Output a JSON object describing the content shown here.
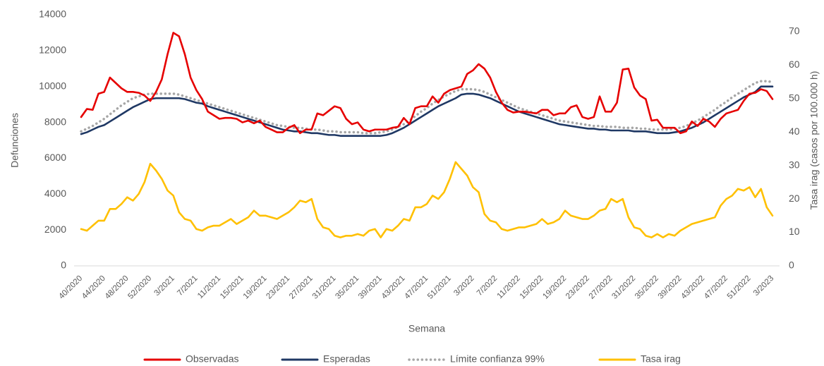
{
  "chart_data": {
    "type": "line",
    "x_label": "Semana",
    "y_label": "Defunciones",
    "y2_label": "Tasa irag (casos por 100.000 h)",
    "categories": [
      "40/2020",
      null,
      null,
      null,
      "44/2020",
      null,
      null,
      null,
      "48/2020",
      null,
      null,
      null,
      "52/2020",
      null,
      null,
      null,
      "3/2021",
      null,
      null,
      null,
      "7/2021",
      null,
      null,
      null,
      "11/2021",
      null,
      null,
      null,
      "15/2021",
      null,
      null,
      null,
      "19/2021",
      null,
      null,
      null,
      "23/2021",
      null,
      null,
      null,
      "27/2021",
      null,
      null,
      null,
      "31/2021",
      null,
      null,
      null,
      "35/2021",
      null,
      null,
      null,
      "39/2021",
      null,
      null,
      null,
      "43/2021",
      null,
      null,
      null,
      "47/2021",
      null,
      null,
      null,
      "51/2021",
      null,
      null,
      null,
      "3/2022",
      null,
      null,
      null,
      "7/2022",
      null,
      null,
      null,
      "11/2022",
      null,
      null,
      null,
      "15/2022",
      null,
      null,
      null,
      "19/2022",
      null,
      null,
      null,
      "23/2022",
      null,
      null,
      null,
      "27/2022",
      null,
      null,
      null,
      "31/2022",
      null,
      null,
      null,
      "35/2022",
      null,
      null,
      null,
      "39/2022",
      null,
      null,
      null,
      "43/2022",
      null,
      null,
      null,
      "47/2022",
      null,
      null,
      null,
      "51/2022",
      null,
      null,
      null,
      "3/2023"
    ],
    "series": [
      {
        "name": "Observadas",
        "color": "#e60000",
        "style": "solid",
        "values": [
          8300,
          8750,
          8700,
          9600,
          9700,
          10500,
          10200,
          9900,
          9700,
          9700,
          9650,
          9500,
          9200,
          9700,
          10400,
          11800,
          13000,
          12800,
          11800,
          10500,
          9800,
          9300,
          8600,
          8400,
          8200,
          8250,
          8250,
          8200,
          8000,
          8100,
          7950,
          8100,
          7750,
          7600,
          7450,
          7450,
          7700,
          7850,
          7400,
          7600,
          7600,
          8500,
          8400,
          8650,
          8900,
          8800,
          8200,
          7900,
          8000,
          7600,
          7500,
          7600,
          7600,
          7600,
          7700,
          7750,
          8250,
          7900,
          8800,
          8900,
          8900,
          9450,
          9100,
          9600,
          9800,
          9900,
          10000,
          10700,
          10900,
          11250,
          11000,
          10500,
          9700,
          9100,
          8700,
          8550,
          8600,
          8600,
          8550,
          8500,
          8700,
          8700,
          8400,
          8500,
          8500,
          8850,
          8950,
          8300,
          8200,
          8300,
          9450,
          8600,
          8600,
          9100,
          10950,
          11000,
          9950,
          9500,
          9300,
          8100,
          8150,
          7700,
          7700,
          7700,
          7400,
          7500,
          8050,
          7800,
          8200,
          8050,
          7750,
          8200,
          8500,
          8600,
          8700,
          9200,
          9600,
          9650,
          9850,
          9750,
          9300
        ]
      },
      {
        "name": "Esperadas",
        "color": "#1f3864",
        "style": "solid",
        "values": [
          7350,
          7450,
          7600,
          7750,
          7850,
          8050,
          8250,
          8450,
          8650,
          8850,
          9000,
          9150,
          9300,
          9350,
          9350,
          9350,
          9350,
          9350,
          9300,
          9200,
          9100,
          9050,
          8900,
          8800,
          8700,
          8600,
          8500,
          8400,
          8300,
          8200,
          8100,
          8000,
          7900,
          7800,
          7700,
          7600,
          7550,
          7500,
          7500,
          7450,
          7400,
          7400,
          7350,
          7300,
          7300,
          7250,
          7250,
          7250,
          7250,
          7250,
          7250,
          7250,
          7250,
          7300,
          7400,
          7550,
          7700,
          7900,
          8100,
          8300,
          8500,
          8700,
          8900,
          9050,
          9200,
          9350,
          9550,
          9600,
          9600,
          9550,
          9450,
          9350,
          9200,
          9050,
          8900,
          8750,
          8600,
          8500,
          8400,
          8300,
          8200,
          8100,
          8000,
          7900,
          7850,
          7800,
          7750,
          7700,
          7650,
          7650,
          7600,
          7600,
          7550,
          7550,
          7550,
          7550,
          7500,
          7500,
          7500,
          7450,
          7400,
          7400,
          7400,
          7450,
          7500,
          7600,
          7700,
          7850,
          8000,
          8200,
          8400,
          8600,
          8800,
          9000,
          9200,
          9400,
          9550,
          9700,
          10000,
          10000,
          10000
        ]
      },
      {
        "name": "Límite confianza 99%",
        "color": "#a6a6a6",
        "style": "dotted",
        "values": [
          7500,
          7650,
          7800,
          8000,
          8200,
          8450,
          8700,
          8950,
          9150,
          9350,
          9450,
          9550,
          9600,
          9600,
          9600,
          9600,
          9600,
          9550,
          9450,
          9350,
          9250,
          9150,
          9050,
          8950,
          8850,
          8750,
          8650,
          8550,
          8450,
          8350,
          8250,
          8150,
          8050,
          7950,
          7850,
          7800,
          7750,
          7700,
          7700,
          7650,
          7600,
          7600,
          7550,
          7500,
          7500,
          7450,
          7450,
          7450,
          7450,
          7400,
          7400,
          7400,
          7450,
          7500,
          7600,
          7750,
          7900,
          8100,
          8350,
          8600,
          8800,
          9050,
          9250,
          9450,
          9600,
          9750,
          9850,
          9850,
          9850,
          9800,
          9700,
          9550,
          9400,
          9250,
          9100,
          8950,
          8800,
          8700,
          8600,
          8500,
          8400,
          8300,
          8200,
          8100,
          8050,
          8000,
          7950,
          7900,
          7850,
          7800,
          7800,
          7750,
          7750,
          7750,
          7700,
          7700,
          7700,
          7650,
          7650,
          7600,
          7600,
          7600,
          7600,
          7650,
          7700,
          7800,
          7950,
          8100,
          8300,
          8500,
          8700,
          8950,
          9150,
          9400,
          9600,
          9800,
          10000,
          10200,
          10300,
          10300,
          10250
        ]
      },
      {
        "name": "Tasa irag",
        "color": "#ffc000",
        "style": "solid",
        "axis": "y2",
        "values": [
          11,
          10.5,
          12,
          13.5,
          13.5,
          17,
          17,
          18.5,
          20.5,
          19.5,
          21.5,
          25,
          30.5,
          28.5,
          26,
          22.5,
          21,
          16,
          14,
          13.5,
          11,
          10.5,
          11.5,
          12,
          12,
          13,
          14,
          12.5,
          13.5,
          14.5,
          16.5,
          15,
          15,
          14.5,
          14,
          15,
          16,
          17.5,
          19.5,
          19,
          20,
          14,
          11.5,
          11,
          9,
          8.5,
          9,
          9,
          9.5,
          9,
          10.5,
          11,
          8.5,
          11,
          10.5,
          12,
          14,
          13.5,
          17.5,
          17.5,
          18.5,
          21,
          20,
          22,
          26,
          31,
          29,
          27,
          23.5,
          22,
          15.5,
          13.5,
          13,
          11,
          10.5,
          11,
          11.5,
          11.5,
          12,
          12.5,
          14,
          12.5,
          13,
          14,
          16.5,
          15,
          14.5,
          14,
          14,
          15,
          16.5,
          17,
          20,
          19,
          20,
          14.5,
          11.5,
          11,
          9,
          8.5,
          9.5,
          8.5,
          9.5,
          9,
          10.5,
          11.5,
          12.5,
          13,
          13.5,
          14,
          14.5,
          18,
          20,
          21,
          23,
          22.5,
          23.5,
          20.5,
          23,
          17.5,
          15
        ]
      }
    ],
    "ylim": [
      0,
      14000
    ],
    "yticks": [
      0,
      2000,
      4000,
      6000,
      8000,
      10000,
      12000,
      14000
    ],
    "y2lim": [
      0,
      75
    ],
    "y2ticks": [
      0,
      10,
      20,
      30,
      40,
      50,
      60,
      70
    ],
    "grid": false,
    "legend": "bottom"
  }
}
